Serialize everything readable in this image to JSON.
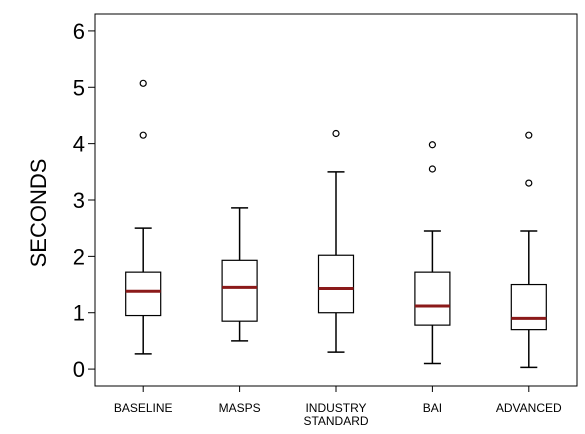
{
  "chart_data": {
    "type": "boxplot",
    "title": "",
    "xlabel": "",
    "ylabel": "SECONDS",
    "ylim": [
      -0.3,
      6.3
    ],
    "yticks": [
      0,
      1,
      2,
      3,
      4,
      5,
      6
    ],
    "ytick_labels": [
      "0",
      "1",
      "2",
      "3",
      "4",
      "5",
      "6"
    ],
    "grid": false,
    "legend": "none",
    "colors": {
      "box_stroke": "#000000",
      "median": "#8b1a1a",
      "frame": "#000000"
    },
    "categories": [
      {
        "label": "BASELINE",
        "label_lines": [
          "BASELINE"
        ],
        "min": 0.27,
        "q1": 0.95,
        "median": 1.38,
        "q3": 1.72,
        "max": 2.5,
        "outliers": [
          4.15,
          5.07
        ]
      },
      {
        "label": "MASPS",
        "label_lines": [
          "MASPS"
        ],
        "min": 0.5,
        "q1": 0.85,
        "median": 1.45,
        "q3": 1.93,
        "max": 2.86,
        "outliers": []
      },
      {
        "label": "INDUSTRY STANDARD",
        "label_lines": [
          "INDUSTRY",
          "STANDARD"
        ],
        "min": 0.3,
        "q1": 1.0,
        "median": 1.43,
        "q3": 2.02,
        "max": 3.5,
        "outliers": [
          4.18
        ]
      },
      {
        "label": "BAI",
        "label_lines": [
          "BAI"
        ],
        "min": 0.1,
        "q1": 0.78,
        "median": 1.12,
        "q3": 1.72,
        "max": 2.45,
        "outliers": [
          3.55,
          3.98
        ]
      },
      {
        "label": "ADVANCED",
        "label_lines": [
          "ADVANCED"
        ],
        "min": 0.03,
        "q1": 0.7,
        "median": 0.9,
        "q3": 1.5,
        "max": 2.45,
        "outliers": [
          3.3,
          4.15
        ]
      }
    ]
  }
}
